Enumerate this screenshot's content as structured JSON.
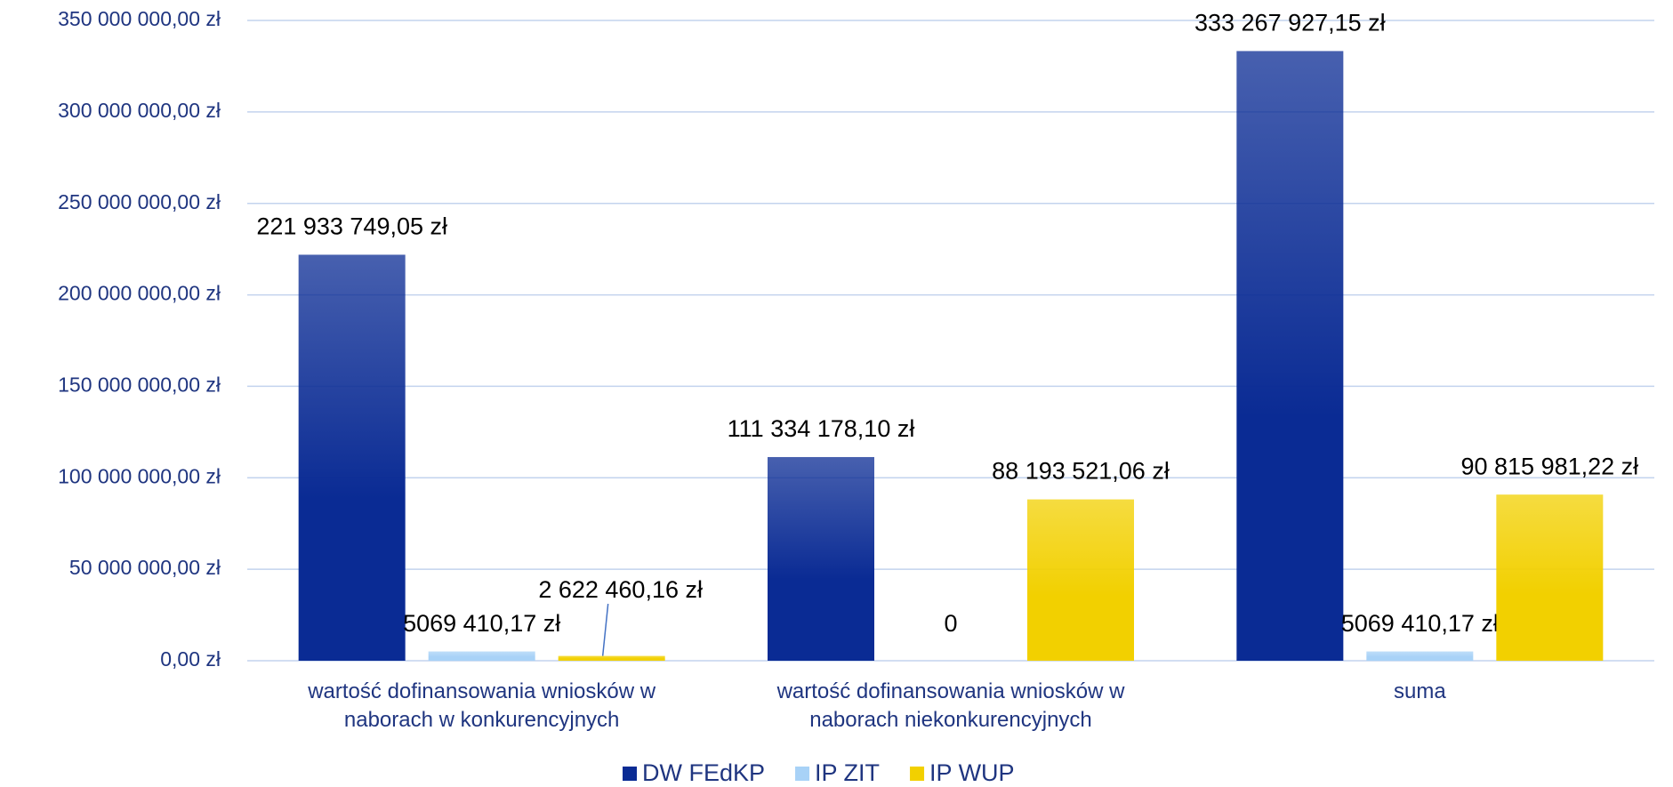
{
  "chart_data": {
    "type": "bar",
    "categories": [
      "wartość dofinansowania wniosków w naborach w konkurencyjnych",
      "wartość dofinansowania wniosków w naborach niekonkurencyjnych",
      "suma"
    ],
    "series": [
      {
        "name": "DW FEdKP",
        "color": "#0a2b94",
        "values": [
          221933749.05,
          111334178.1,
          333267927.15
        ],
        "value_labels": [
          "221 933 749,05 zł",
          "111 334 178,10 zł",
          "333 267 927,15 zł"
        ]
      },
      {
        "name": "IP ZIT",
        "color": "#a8d2f7",
        "values": [
          5069410.17,
          0,
          5069410.17
        ],
        "value_labels": [
          "5069 410,17 zł",
          "0",
          "5069 410,17 zł"
        ]
      },
      {
        "name": "IP WUP",
        "color": "#f2d000",
        "values": [
          2622460.16,
          88193521.06,
          90815981.22
        ],
        "value_labels": [
          "2 622 460,16 zł",
          "88 193 521,06 zł",
          "90 815 981,22 zł"
        ]
      }
    ],
    "ylim": [
      0,
      350000000
    ],
    "yticks": [
      {
        "value": 0,
        "label": "0,00 zł"
      },
      {
        "value": 50000000,
        "label": "50 000 000,00 zł"
      },
      {
        "value": 100000000,
        "label": "100 000 000,00 zł"
      },
      {
        "value": 150000000,
        "label": "150 000 000,00 zł"
      },
      {
        "value": 200000000,
        "label": "200 000 000,00 zł"
      },
      {
        "value": 250000000,
        "label": "250 000 000,00 zł"
      },
      {
        "value": 300000000,
        "label": "300 000 000,00 zł"
      },
      {
        "value": 350000000,
        "label": "350 000 000,00 zł"
      }
    ],
    "grid": true,
    "legend": "bottom"
  }
}
